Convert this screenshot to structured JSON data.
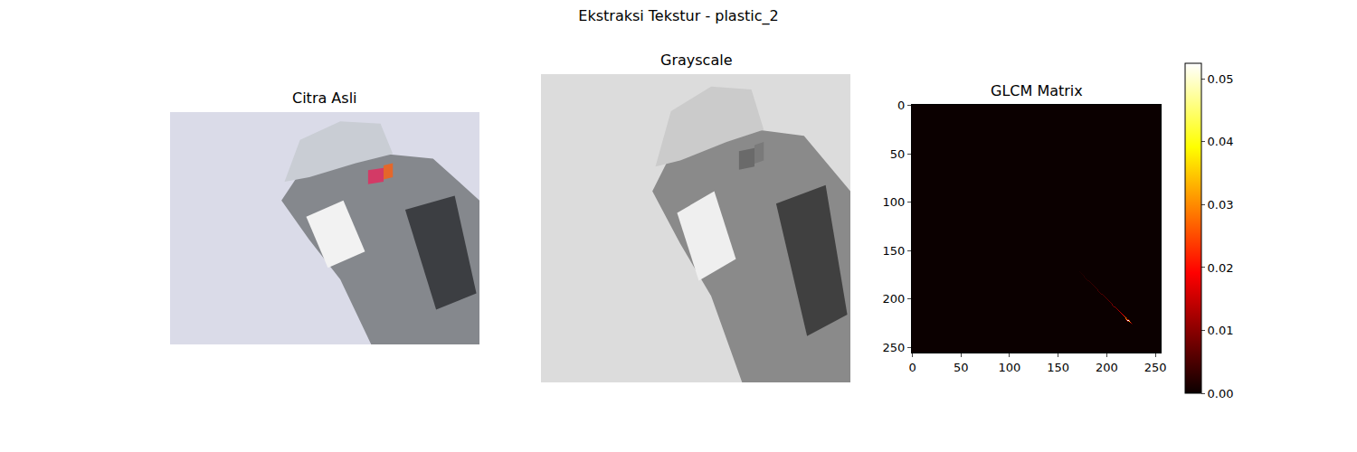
{
  "title": "Ekstraksi Tekstur - plastic_2",
  "chart_data": [
    {
      "type": "image",
      "title": "Citra Asli",
      "color": "rgb"
    },
    {
      "type": "image",
      "title": "Grayscale",
      "color": "gray"
    },
    {
      "type": "heatmap",
      "title": "GLCM Matrix",
      "color": "hot",
      "matrix_size": 256,
      "cells": [
        [
          172,
          172,
          0.001
        ],
        [
          173,
          173,
          0.001
        ],
        [
          174,
          174,
          0.0015
        ],
        [
          175,
          175,
          0.0015
        ],
        [
          176,
          176,
          0.002
        ],
        [
          177,
          177,
          0.002
        ],
        [
          178,
          178,
          0.002
        ],
        [
          179,
          179,
          0.0025
        ],
        [
          180,
          180,
          0.0025
        ],
        [
          181,
          181,
          0.0025
        ],
        [
          182,
          182,
          0.003
        ],
        [
          183,
          183,
          0.003
        ],
        [
          184,
          184,
          0.003
        ],
        [
          185,
          185,
          0.0035
        ],
        [
          186,
          186,
          0.0035
        ],
        [
          187,
          187,
          0.0035
        ],
        [
          188,
          188,
          0.004
        ],
        [
          189,
          189,
          0.004
        ],
        [
          190,
          190,
          0.004
        ],
        [
          191,
          191,
          0.0045
        ],
        [
          192,
          192,
          0.0045
        ],
        [
          193,
          193,
          0.0045
        ],
        [
          194,
          194,
          0.005
        ],
        [
          195,
          195,
          0.005
        ],
        [
          196,
          196,
          0.005
        ],
        [
          197,
          197,
          0.0055
        ],
        [
          198,
          198,
          0.0055
        ],
        [
          199,
          199,
          0.006
        ],
        [
          200,
          200,
          0.006
        ],
        [
          201,
          201,
          0.0065
        ],
        [
          202,
          202,
          0.0065
        ],
        [
          203,
          203,
          0.007
        ],
        [
          204,
          204,
          0.007
        ],
        [
          205,
          205,
          0.0075
        ],
        [
          206,
          206,
          0.008
        ],
        [
          207,
          207,
          0.0085
        ],
        [
          208,
          208,
          0.009
        ],
        [
          209,
          209,
          0.0095
        ],
        [
          210,
          210,
          0.01
        ],
        [
          211,
          211,
          0.011
        ],
        [
          212,
          212,
          0.012
        ],
        [
          213,
          213,
          0.013
        ],
        [
          214,
          214,
          0.014
        ],
        [
          215,
          215,
          0.0155
        ],
        [
          216,
          216,
          0.017
        ],
        [
          217,
          217,
          0.019
        ],
        [
          218,
          218,
          0.021
        ],
        [
          219,
          219,
          0.024
        ],
        [
          220,
          220,
          0.027
        ],
        [
          221,
          221,
          0.033
        ],
        [
          222,
          222,
          0.052
        ],
        [
          223,
          223,
          0.042
        ],
        [
          224,
          224,
          0.024
        ],
        [
          225,
          225,
          0.012
        ],
        [
          226,
          226,
          0.004
        ],
        [
          220,
          221,
          0.006
        ],
        [
          221,
          220,
          0.006
        ],
        [
          221,
          222,
          0.01
        ],
        [
          222,
          221,
          0.01
        ],
        [
          222,
          223,
          0.012
        ],
        [
          223,
          222,
          0.012
        ]
      ],
      "xlim": [
        -0.5,
        255.5
      ],
      "ylim": [
        255.5,
        -0.5
      ],
      "xticks": [
        0,
        50,
        100,
        150,
        200,
        250
      ],
      "yticks": [
        0,
        50,
        100,
        150,
        200,
        250
      ],
      "colorbar_range": [
        0,
        0.0525
      ],
      "colorbar_ticks": [
        {
          "value": 0,
          "label": "0.00"
        },
        {
          "value": 0.01,
          "label": "0.01"
        },
        {
          "value": 0.02,
          "label": "0.02"
        },
        {
          "value": 0.03,
          "label": "0.03"
        },
        {
          "value": 0.04,
          "label": "0.04"
        },
        {
          "value": 0.05,
          "label": "0.05"
        }
      ]
    }
  ]
}
